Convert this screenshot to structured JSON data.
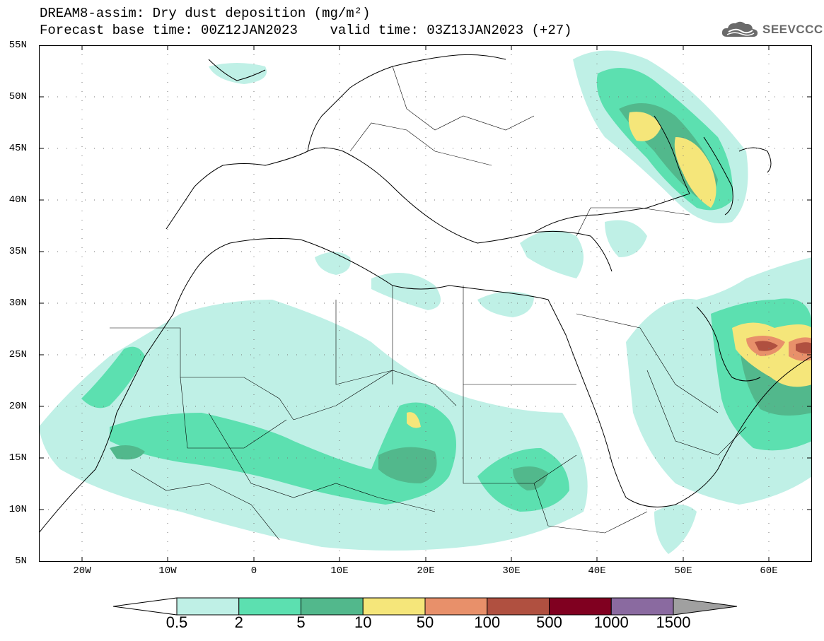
{
  "title": {
    "line1": "DREAM8-assim: Dry dust deposition (mg/m²)",
    "line2": "Forecast base time: 00Z12JAN2023    valid time: 03Z13JAN2023 (+27)"
  },
  "logo": {
    "text": "SEEVCCC",
    "icon": "cloud-icon",
    "color": "#6a6a6a"
  },
  "map": {
    "projection": "lat-lon",
    "lon_range": [
      -25,
      65
    ],
    "lat_range": [
      5,
      55
    ],
    "lat_labels": [
      "55N",
      "50N",
      "45N",
      "40N",
      "35N",
      "30N",
      "25N",
      "20N",
      "15N",
      "10N",
      "5N"
    ],
    "lon_labels": [
      "20W",
      "10W",
      "0",
      "10E",
      "20E",
      "30E",
      "40E",
      "50E",
      "60E"
    ],
    "grid": "dotted",
    "coastline_color": "#000000"
  },
  "colorbar": {
    "colors": [
      "#bff0e6",
      "#5ce0b0",
      "#52b88c",
      "#f5e67a",
      "#e8906a",
      "#b05040",
      "#800020",
      "#8a6aa0"
    ],
    "end_left_color": "#ffffff",
    "end_right_color": "#a0a0a0",
    "labels": [
      "0.5",
      "2",
      "5",
      "10",
      "50",
      "100",
      "500",
      "1000",
      "1500"
    ]
  }
}
